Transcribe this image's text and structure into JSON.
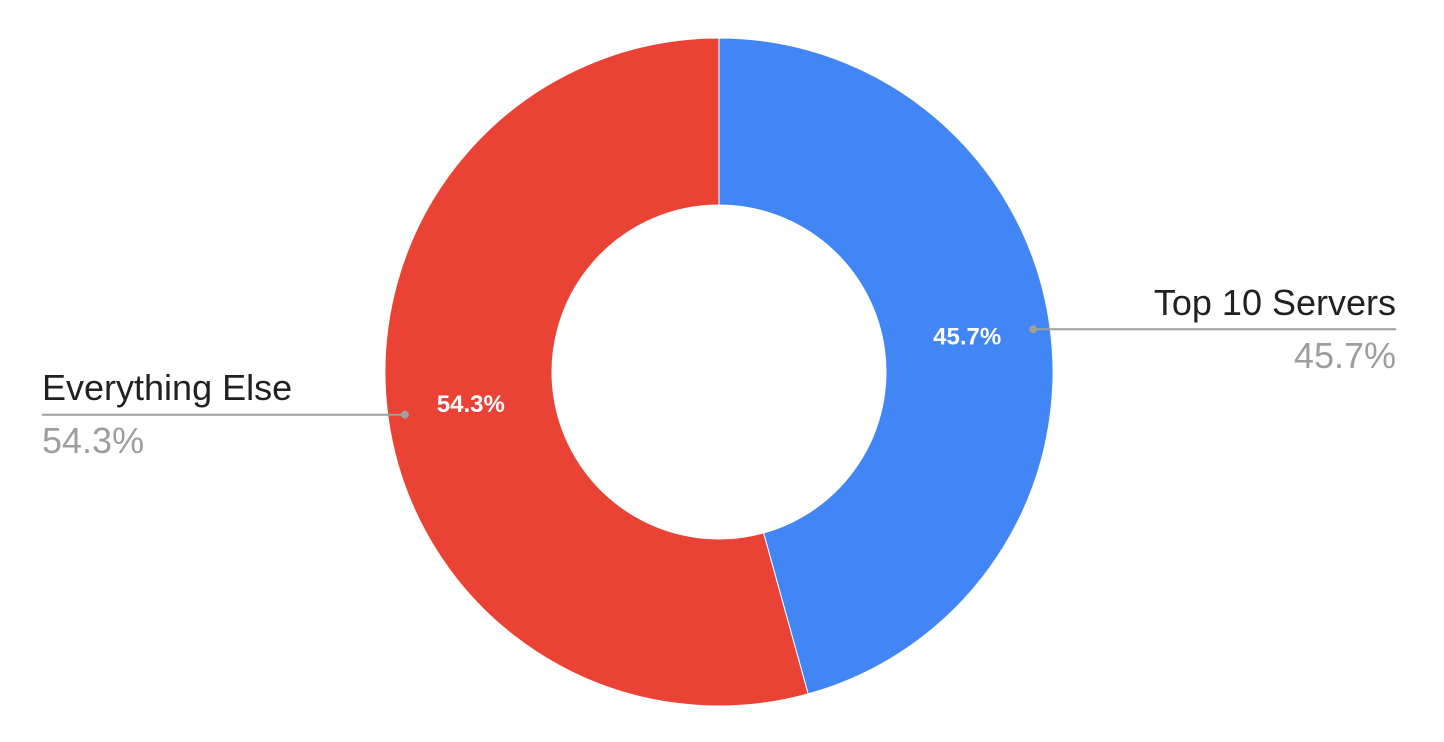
{
  "chart_data": {
    "type": "donut",
    "categories": [
      "Top 10 Servers",
      "Everything Else"
    ],
    "values": [
      45.7,
      54.3
    ],
    "value_labels": [
      "45.7%",
      "54.3%"
    ],
    "colors": [
      "#4285f4",
      "#ea4335"
    ]
  }
}
